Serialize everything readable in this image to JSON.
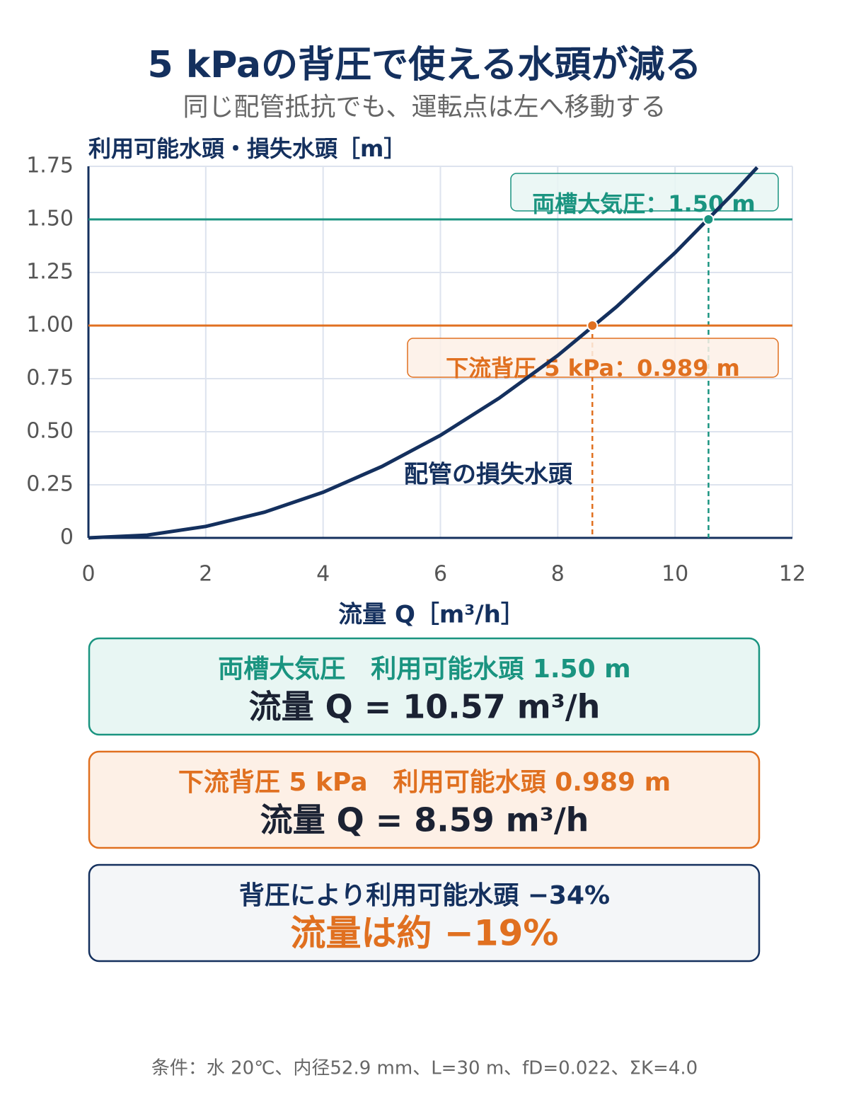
{
  "chart_data": {
    "type": "line",
    "title": "5 kPaの背圧で使える水頭が減る",
    "subtitle": "同じ配管抵抗でも、運転点は左へ移動する",
    "y_label": "利用可能水頭・損失水頭［m］",
    "x_label": "流量 Q［m³/h］",
    "x": [
      0,
      1,
      2,
      3,
      4,
      5,
      6,
      7,
      8,
      9,
      10,
      11,
      11.4
    ],
    "series": [
      {
        "name": "配管の損失水頭",
        "color": "#14305e",
        "values": [
          0,
          0.013,
          0.054,
          0.121,
          0.215,
          0.336,
          0.483,
          0.658,
          0.859,
          1.088,
          1.343,
          1.625,
          1.745
        ]
      }
    ],
    "hlines": [
      {
        "label": "両槽大気圧：1.50 m",
        "value": 1.5,
        "point_x": 10.57,
        "color": "#1a9480"
      },
      {
        "label": "下流背圧 5 kPa：0.989 m",
        "value": 1.0,
        "point_x": 8.59,
        "color": "#e07020"
      }
    ],
    "xlim": [
      0,
      12
    ],
    "xticks": [
      0,
      2,
      4,
      6,
      8,
      10,
      12
    ],
    "ylim": [
      0,
      1.75
    ],
    "yticks": [
      0,
      0.25,
      {
        "value": 0.5,
        "label": "0.50"
      },
      0.75,
      {
        "value": 1.0,
        "label": "1.00"
      },
      1.25,
      {
        "value": 1.5,
        "label": "1.50"
      },
      1.75
    ],
    "grid": true
  },
  "cards": [
    {
      "line1": "両槽大気圧　利用可能水頭 1.50 m",
      "line2": "流量 Q = 10.57 m³/h"
    },
    {
      "line1": "下流背圧 5 kPa　利用可能水頭 0.989 m",
      "line2": "流量 Q = 8.59 m³/h"
    },
    {
      "line1": "背圧により利用可能水頭 −34%",
      "line2": "流量は約 −19%"
    }
  ],
  "footnote": "条件：水 20℃、内径52.9 mm、L=30 m、fD=0.022、ΣK=4.0"
}
